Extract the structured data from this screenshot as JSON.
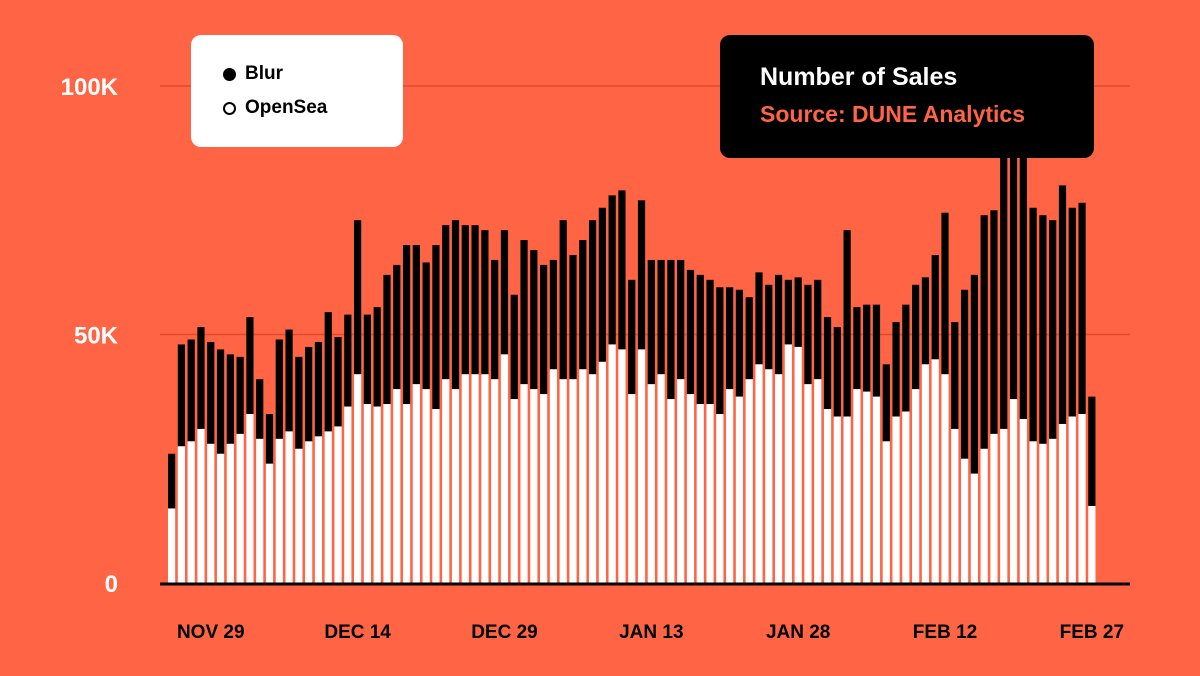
{
  "chart_data": {
    "type": "bar",
    "stacked": true,
    "title": "Number of Sales",
    "subtitle": "Source: DUNE Analytics",
    "ylim": [
      0,
      100000
    ],
    "y_ticks": [
      {
        "value": 0,
        "label": "0"
      },
      {
        "value": 50000,
        "label": "50K"
      },
      {
        "value": 100000,
        "label": "100K"
      }
    ],
    "x_ticks": [
      {
        "index": 4,
        "label": "NOV 29"
      },
      {
        "index": 19,
        "label": "DEC 14"
      },
      {
        "index": 34,
        "label": "DEC 29"
      },
      {
        "index": 49,
        "label": "JAN 13"
      },
      {
        "index": 64,
        "label": "JAN 28"
      },
      {
        "index": 79,
        "label": "FEB 12"
      },
      {
        "index": 94,
        "label": "FEB 27"
      }
    ],
    "legend": [
      "Blur",
      "OpenSea"
    ],
    "legend_placement": "top-left",
    "grid": true,
    "series": [
      {
        "name": "OpenSea",
        "color": "#ffffff",
        "values": [
          15000,
          27500,
          28500,
          31000,
          28000,
          26000,
          28000,
          30000,
          34000,
          29000,
          24000,
          29000,
          30500,
          27000,
          28500,
          29500,
          30500,
          31500,
          35500,
          42000,
          36000,
          35500,
          36000,
          39000,
          36000,
          40000,
          39000,
          35000,
          41000,
          39000,
          42000,
          42000,
          42000,
          41000,
          46000,
          37000,
          40000,
          39000,
          38000,
          43000,
          41000,
          41000,
          43000,
          42000,
          44500,
          48000,
          47000,
          38000,
          47000,
          40000,
          42000,
          37000,
          41000,
          38000,
          36000,
          36000,
          34000,
          39000,
          37500,
          41000,
          44000,
          43000,
          42000,
          48000,
          47500,
          40000,
          41000,
          35000,
          33500,
          33500,
          39000,
          38500,
          37500,
          28500,
          33500,
          34500,
          39000,
          44000,
          45000,
          42000,
          31000,
          25000,
          22000,
          27000,
          30000,
          31000,
          37000,
          33000,
          28500,
          28000,
          29000,
          32000,
          33500,
          34000,
          15500
        ]
      },
      {
        "name": "Blur",
        "color": "#000000",
        "values": [
          11000,
          20500,
          20500,
          20500,
          20500,
          21000,
          18000,
          15500,
          19500,
          12000,
          10000,
          20000,
          20500,
          18500,
          19000,
          19000,
          24000,
          18000,
          18500,
          31000,
          18000,
          20000,
          26000,
          25000,
          32000,
          28000,
          25500,
          33000,
          31000,
          34000,
          30000,
          30000,
          29000,
          24000,
          25000,
          21000,
          29000,
          28000,
          26000,
          22000,
          32000,
          25000,
          26000,
          31000,
          31000,
          30000,
          32000,
          23000,
          30000,
          25000,
          23000,
          28000,
          24000,
          25000,
          26000,
          25000,
          25500,
          20500,
          21500,
          16500,
          18500,
          17000,
          20000,
          13000,
          14000,
          20000,
          20000,
          18500,
          18000,
          37500,
          16500,
          17500,
          18500,
          15500,
          19000,
          21500,
          21000,
          17500,
          21000,
          32500,
          21500,
          34000,
          40000,
          47000,
          45000,
          58000,
          65000,
          63000,
          47000,
          46000,
          44000,
          48000,
          42000,
          42500,
          22000
        ]
      }
    ]
  }
}
